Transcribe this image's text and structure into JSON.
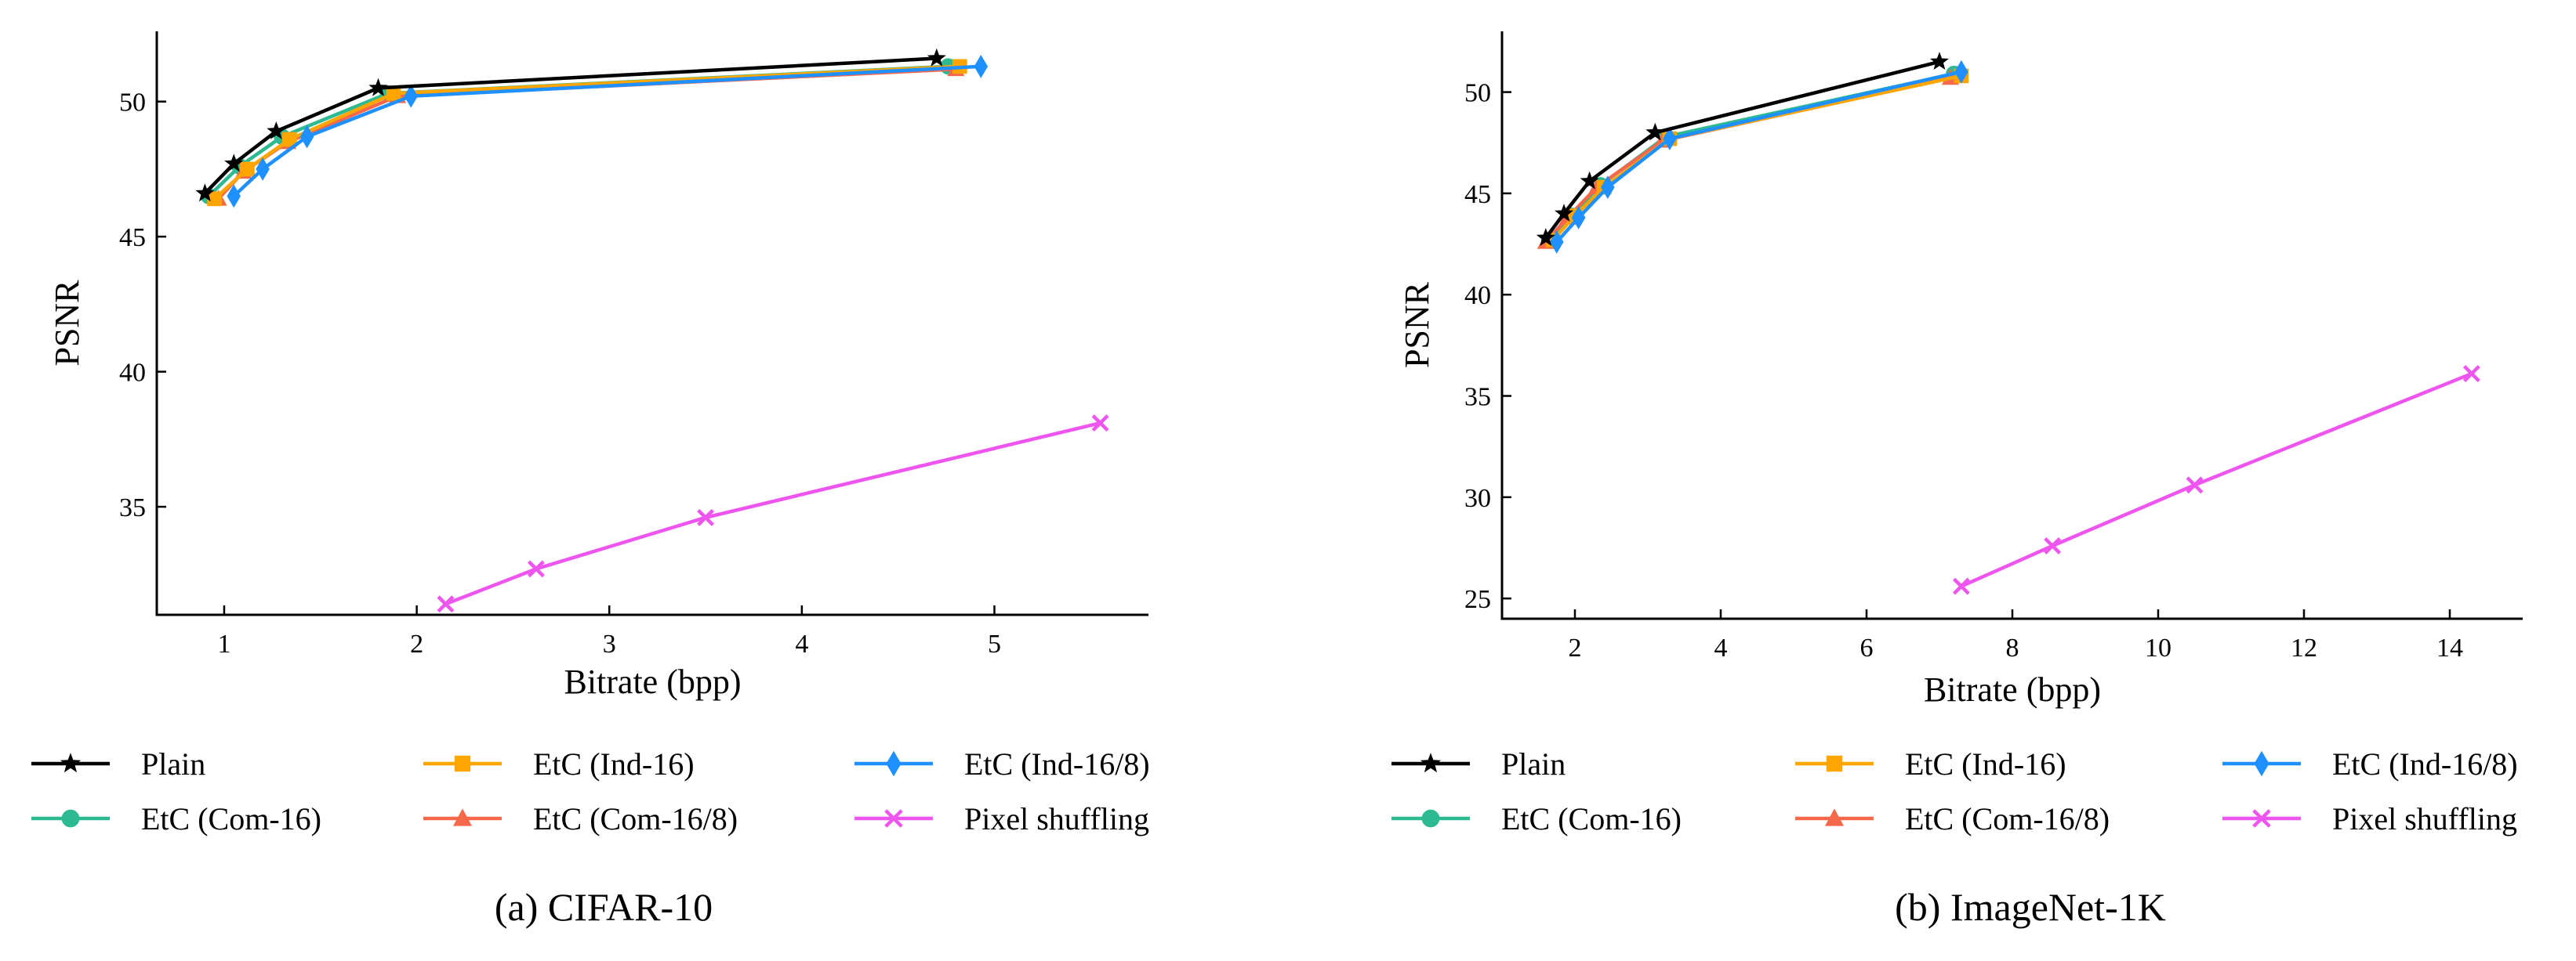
{
  "figures": [
    {
      "caption": "(a) CIFAR-10",
      "chart_data": {
        "type": "line",
        "xlabel": "Bitrate (bpp)",
        "ylabel": "PSNR",
        "xlim": [
          0.65,
          5.8
        ],
        "ylim": [
          31.0,
          52.6
        ],
        "xticks": [
          1,
          2,
          3,
          4,
          5
        ],
        "yticks": [
          35,
          40,
          45,
          50
        ],
        "series": [
          {
            "name": "Plain",
            "color": "#000000",
            "marker": "star",
            "x": [
              0.9,
              1.05,
              1.27,
              1.8,
              4.7
            ],
            "y": [
              46.6,
              47.7,
              48.9,
              50.5,
              51.6
            ]
          },
          {
            "name": "EtC (Ind-16)",
            "color": "#ffa500",
            "marker": "square",
            "x": [
              0.95,
              1.12,
              1.34,
              1.88,
              4.82
            ],
            "y": [
              46.4,
              47.5,
              48.6,
              50.3,
              51.3
            ]
          },
          {
            "name": "EtC (Ind-16/8)",
            "color": "#1e90ff",
            "marker": "diamond",
            "x": [
              1.05,
              1.2,
              1.43,
              1.97,
              4.93
            ],
            "y": [
              46.5,
              47.5,
              48.7,
              50.2,
              51.3
            ]
          },
          {
            "name": "EtC (Com-16)",
            "color": "#2db991",
            "marker": "circle",
            "x": [
              0.92,
              1.08,
              1.3,
              1.85,
              4.76
            ],
            "y": [
              46.5,
              47.6,
              48.7,
              50.3,
              51.3
            ]
          },
          {
            "name": "EtC (Com-16/8)",
            "color": "#f5684a",
            "marker": "triangle",
            "x": [
              0.97,
              1.1,
              1.33,
              1.9,
              4.8
            ],
            "y": [
              46.4,
              47.4,
              48.5,
              50.2,
              51.2
            ]
          },
          {
            "name": "Pixel shuffling",
            "color": "#ee55ee",
            "marker": "x",
            "x": [
              2.15,
              2.62,
              3.5,
              5.55
            ],
            "y": [
              31.4,
              32.7,
              34.6,
              38.1
            ]
          }
        ]
      }
    },
    {
      "caption": "(b) ImageNet-1K",
      "chart_data": {
        "type": "line",
        "xlabel": "Bitrate (bpp)",
        "ylabel": "PSNR",
        "xlim": [
          1.0,
          15.0
        ],
        "ylim": [
          24.0,
          53.0
        ],
        "xticks": [
          2,
          4,
          6,
          8,
          10,
          12,
          14
        ],
        "yticks": [
          25,
          30,
          35,
          40,
          45,
          50
        ],
        "series": [
          {
            "name": "Plain",
            "color": "#000000",
            "marker": "star",
            "x": [
              1.6,
              1.85,
              2.2,
              3.1,
              7.0
            ],
            "y": [
              42.8,
              44.0,
              45.6,
              48.0,
              51.5
            ]
          },
          {
            "name": "EtC (Ind-16)",
            "color": "#ffa500",
            "marker": "square",
            "x": [
              1.7,
              2.0,
              2.4,
              3.3,
              7.3
            ],
            "y": [
              42.7,
              43.9,
              45.3,
              47.7,
              50.8
            ]
          },
          {
            "name": "EtC (Ind-16/8)",
            "color": "#1e90ff",
            "marker": "diamond",
            "x": [
              1.75,
              2.05,
              2.45,
              3.3,
              7.3
            ],
            "y": [
              42.6,
              43.8,
              45.3,
              47.7,
              51.0
            ]
          },
          {
            "name": "EtC (Com-16)",
            "color": "#2db991",
            "marker": "circle",
            "x": [
              1.65,
              1.95,
              2.35,
              3.25,
              7.2
            ],
            "y": [
              42.7,
              43.9,
              45.4,
              47.8,
              50.9
            ]
          },
          {
            "name": "EtC (Com-16/8)",
            "color": "#f5684a",
            "marker": "triangle",
            "x": [
              1.6,
              1.9,
              2.3,
              3.2,
              7.15
            ],
            "y": [
              42.6,
              43.8,
              45.3,
              47.6,
              50.7
            ]
          },
          {
            "name": "Pixel shuffling",
            "color": "#ee55ee",
            "marker": "x",
            "x": [
              7.3,
              8.55,
              10.5,
              14.3
            ],
            "y": [
              25.6,
              27.6,
              30.6,
              36.1
            ]
          }
        ]
      }
    }
  ]
}
